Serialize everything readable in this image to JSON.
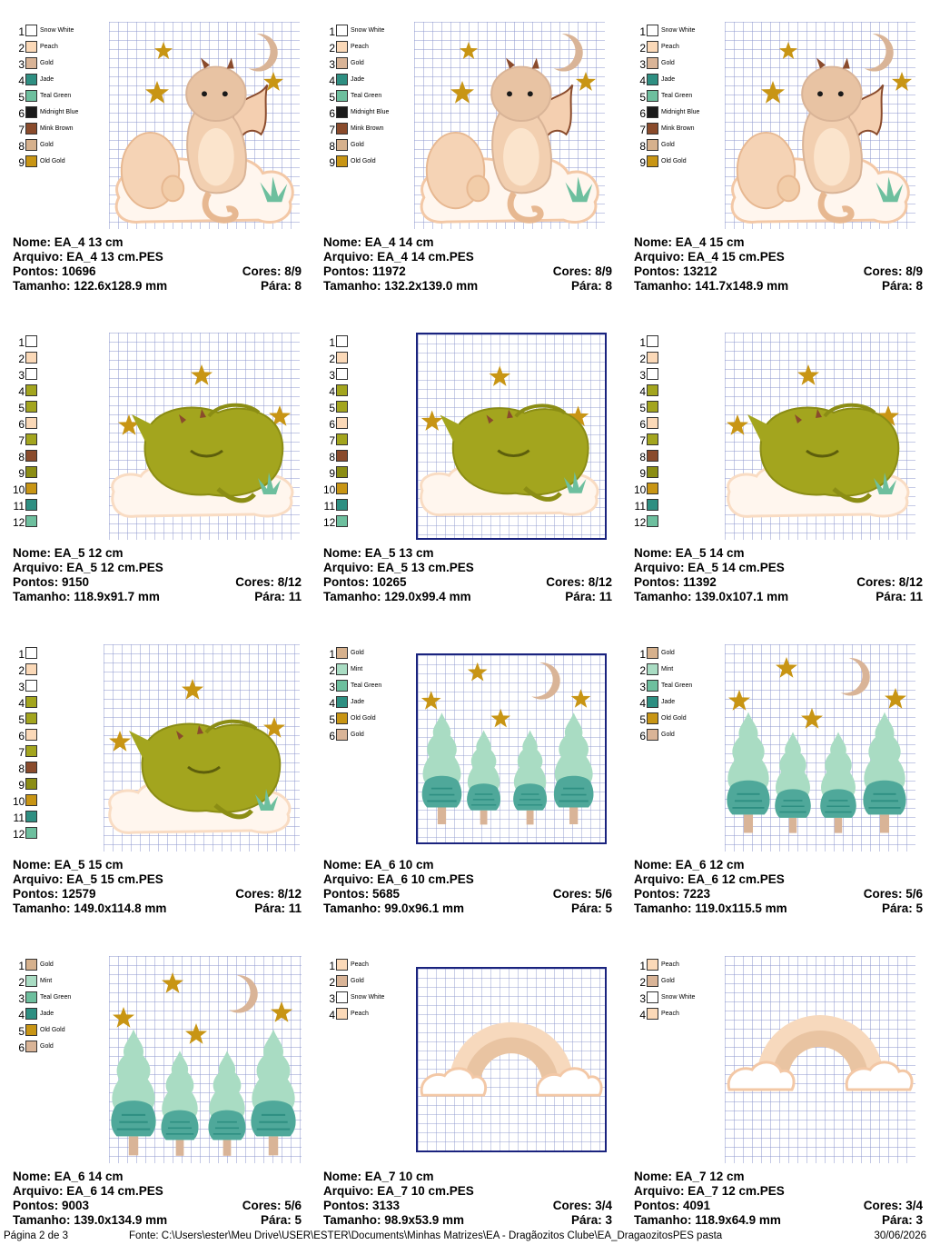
{
  "cards": [
    {
      "legend": [
        {
          "n": "1",
          "color": "#ffffff",
          "name": "Snow White"
        },
        {
          "n": "2",
          "color": "#fbd9b8",
          "name": "Peach"
        },
        {
          "n": "3",
          "color": "#d9b497",
          "name": "Gold"
        },
        {
          "n": "4",
          "color": "#2e8f82",
          "name": "Jade"
        },
        {
          "n": "5",
          "color": "#6dbf9e",
          "name": "Teal Green"
        },
        {
          "n": "6",
          "color": "#1a1a1a",
          "name": "Midnight Blue"
        },
        {
          "n": "7",
          "color": "#8a4b2c",
          "name": "Mink Brown"
        },
        {
          "n": "8",
          "color": "#d6b18d",
          "name": "Gold"
        },
        {
          "n": "9",
          "color": "#c89514",
          "name": "Old Gold"
        }
      ],
      "nome": "Nome: EA_4 13 cm",
      "arquivo": "Arquivo: EA_4 13 cm.PES",
      "pontos": "Pontos: 10696",
      "cores": "Cores: 8/9",
      "tamanho": "Tamanho: 122.6x128.9 mm",
      "para": "Pára: 8"
    },
    {
      "legend": [
        {
          "n": "1",
          "color": "#ffffff",
          "name": "Snow White"
        },
        {
          "n": "2",
          "color": "#fbd9b8",
          "name": "Peach"
        },
        {
          "n": "3",
          "color": "#d9b497",
          "name": "Gold"
        },
        {
          "n": "4",
          "color": "#2e8f82",
          "name": "Jade"
        },
        {
          "n": "5",
          "color": "#6dbf9e",
          "name": "Teal Green"
        },
        {
          "n": "6",
          "color": "#1a1a1a",
          "name": "Midnight Blue"
        },
        {
          "n": "7",
          "color": "#8a4b2c",
          "name": "Mink Brown"
        },
        {
          "n": "8",
          "color": "#d6b18d",
          "name": "Gold"
        },
        {
          "n": "9",
          "color": "#c89514",
          "name": "Old Gold"
        }
      ],
      "nome": "Nome: EA_4 14 cm",
      "arquivo": "Arquivo: EA_4 14 cm.PES",
      "pontos": "Pontos: 11972",
      "cores": "Cores: 8/9",
      "tamanho": "Tamanho: 132.2x139.0 mm",
      "para": "Pára: 8"
    },
    {
      "legend": [
        {
          "n": "1",
          "color": "#ffffff",
          "name": "Snow White"
        },
        {
          "n": "2",
          "color": "#fbd9b8",
          "name": "Peach"
        },
        {
          "n": "3",
          "color": "#d9b497",
          "name": "Gold"
        },
        {
          "n": "4",
          "color": "#2e8f82",
          "name": "Jade"
        },
        {
          "n": "5",
          "color": "#6dbf9e",
          "name": "Teal Green"
        },
        {
          "n": "6",
          "color": "#1a1a1a",
          "name": "Midnight Blue"
        },
        {
          "n": "7",
          "color": "#8a4b2c",
          "name": "Mink Brown"
        },
        {
          "n": "8",
          "color": "#d6b18d",
          "name": "Gold"
        },
        {
          "n": "9",
          "color": "#c89514",
          "name": "Old Gold"
        }
      ],
      "nome": "Nome: EA_4 15 cm",
      "arquivo": "Arquivo: EA_4 15 cm.PES",
      "pontos": "Pontos: 13212",
      "cores": "Cores: 8/9",
      "tamanho": "Tamanho: 141.7x148.9 mm",
      "para": "Pára: 8"
    },
    {
      "legend": [
        {
          "n": "1",
          "color": "#ffffff",
          "name": ""
        },
        {
          "n": "2",
          "color": "#fbd9b8",
          "name": ""
        },
        {
          "n": "3",
          "color": "#ffffff",
          "name": ""
        },
        {
          "n": "4",
          "color": "#a3a51e",
          "name": ""
        },
        {
          "n": "5",
          "color": "#a3a51e",
          "name": ""
        },
        {
          "n": "6",
          "color": "#fbd9b8",
          "name": ""
        },
        {
          "n": "7",
          "color": "#a3a51e",
          "name": ""
        },
        {
          "n": "8",
          "color": "#8a4b2c",
          "name": ""
        },
        {
          "n": "9",
          "color": "#8b8d14",
          "name": ""
        },
        {
          "n": "10",
          "color": "#c89514",
          "name": ""
        },
        {
          "n": "11",
          "color": "#2e8f82",
          "name": ""
        },
        {
          "n": "12",
          "color": "#6dbf9e",
          "name": ""
        }
      ],
      "nome": "Nome: EA_5 12 cm",
      "arquivo": "Arquivo: EA_5 12 cm.PES",
      "pontos": "Pontos: 9150",
      "cores": "Cores: 8/12",
      "tamanho": "Tamanho: 118.9x91.7 mm",
      "para": "Pára: 11"
    },
    {
      "legend": [
        {
          "n": "1",
          "color": "#ffffff",
          "name": ""
        },
        {
          "n": "2",
          "color": "#fbd9b8",
          "name": ""
        },
        {
          "n": "3",
          "color": "#ffffff",
          "name": ""
        },
        {
          "n": "4",
          "color": "#a3a51e",
          "name": ""
        },
        {
          "n": "5",
          "color": "#a3a51e",
          "name": ""
        },
        {
          "n": "6",
          "color": "#fbd9b8",
          "name": ""
        },
        {
          "n": "7",
          "color": "#a3a51e",
          "name": ""
        },
        {
          "n": "8",
          "color": "#8a4b2c",
          "name": ""
        },
        {
          "n": "9",
          "color": "#8b8d14",
          "name": ""
        },
        {
          "n": "10",
          "color": "#c89514",
          "name": ""
        },
        {
          "n": "11",
          "color": "#2e8f82",
          "name": ""
        },
        {
          "n": "12",
          "color": "#6dbf9e",
          "name": ""
        }
      ],
      "nome": "Nome: EA_5 13 cm",
      "arquivo": "Arquivo: EA_5 13 cm.PES",
      "pontos": "Pontos: 10265",
      "cores": "Cores: 8/12",
      "tamanho": "Tamanho: 129.0x99.4 mm",
      "para": "Pára: 11"
    },
    {
      "legend": [
        {
          "n": "1",
          "color": "#ffffff",
          "name": ""
        },
        {
          "n": "2",
          "color": "#fbd9b8",
          "name": ""
        },
        {
          "n": "3",
          "color": "#ffffff",
          "name": ""
        },
        {
          "n": "4",
          "color": "#a3a51e",
          "name": ""
        },
        {
          "n": "5",
          "color": "#a3a51e",
          "name": ""
        },
        {
          "n": "6",
          "color": "#fbd9b8",
          "name": ""
        },
        {
          "n": "7",
          "color": "#a3a51e",
          "name": ""
        },
        {
          "n": "8",
          "color": "#8a4b2c",
          "name": ""
        },
        {
          "n": "9",
          "color": "#8b8d14",
          "name": ""
        },
        {
          "n": "10",
          "color": "#c89514",
          "name": ""
        },
        {
          "n": "11",
          "color": "#2e8f82",
          "name": ""
        },
        {
          "n": "12",
          "color": "#6dbf9e",
          "name": ""
        }
      ],
      "nome": "Nome: EA_5 14 cm",
      "arquivo": "Arquivo: EA_5 14 cm.PES",
      "pontos": "Pontos: 11392",
      "cores": "Cores: 8/12",
      "tamanho": "Tamanho: 139.0x107.1 mm",
      "para": "Pára: 11"
    },
    {
      "legend": [
        {
          "n": "1",
          "color": "#ffffff",
          "name": ""
        },
        {
          "n": "2",
          "color": "#fbd9b8",
          "name": ""
        },
        {
          "n": "3",
          "color": "#ffffff",
          "name": ""
        },
        {
          "n": "4",
          "color": "#a3a51e",
          "name": ""
        },
        {
          "n": "5",
          "color": "#a3a51e",
          "name": ""
        },
        {
          "n": "6",
          "color": "#fbd9b8",
          "name": ""
        },
        {
          "n": "7",
          "color": "#a3a51e",
          "name": ""
        },
        {
          "n": "8",
          "color": "#8a4b2c",
          "name": ""
        },
        {
          "n": "9",
          "color": "#8b8d14",
          "name": ""
        },
        {
          "n": "10",
          "color": "#c89514",
          "name": ""
        },
        {
          "n": "11",
          "color": "#2e8f82",
          "name": ""
        },
        {
          "n": "12",
          "color": "#6dbf9e",
          "name": ""
        }
      ],
      "nome": "Nome: EA_5 15 cm",
      "arquivo": "Arquivo: EA_5 15 cm.PES",
      "pontos": "Pontos: 12579",
      "cores": "Cores: 8/12",
      "tamanho": "Tamanho: 149.0x114.8 mm",
      "para": "Pára: 11"
    },
    {
      "legend": [
        {
          "n": "1",
          "color": "#d6b18d",
          "name": "Gold"
        },
        {
          "n": "2",
          "color": "#a9dcc3",
          "name": "Mint"
        },
        {
          "n": "3",
          "color": "#6dbf9e",
          "name": "Teal Green"
        },
        {
          "n": "4",
          "color": "#2e8f82",
          "name": "Jade"
        },
        {
          "n": "5",
          "color": "#c89514",
          "name": "Old Gold"
        },
        {
          "n": "6",
          "color": "#d9b497",
          "name": "Gold"
        }
      ],
      "nome": "Nome: EA_6 10 cm",
      "arquivo": "Arquivo: EA_6 10 cm.PES",
      "pontos": "Pontos: 5685",
      "cores": "Cores: 5/6",
      "tamanho": "Tamanho: 99.0x96.1 mm",
      "para": "Pára: 5"
    },
    {
      "legend": [
        {
          "n": "1",
          "color": "#d6b18d",
          "name": "Gold"
        },
        {
          "n": "2",
          "color": "#a9dcc3",
          "name": "Mint"
        },
        {
          "n": "3",
          "color": "#6dbf9e",
          "name": "Teal Green"
        },
        {
          "n": "4",
          "color": "#2e8f82",
          "name": "Jade"
        },
        {
          "n": "5",
          "color": "#c89514",
          "name": "Old Gold"
        },
        {
          "n": "6",
          "color": "#d9b497",
          "name": "Gold"
        }
      ],
      "nome": "Nome: EA_6 12 cm",
      "arquivo": "Arquivo: EA_6 12 cm.PES",
      "pontos": "Pontos: 7223",
      "cores": "Cores: 5/6",
      "tamanho": "Tamanho: 119.0x115.5 mm",
      "para": "Pára: 5"
    },
    {
      "legend": [
        {
          "n": "1",
          "color": "#d6b18d",
          "name": "Gold"
        },
        {
          "n": "2",
          "color": "#a9dcc3",
          "name": "Mint"
        },
        {
          "n": "3",
          "color": "#6dbf9e",
          "name": "Teal Green"
        },
        {
          "n": "4",
          "color": "#2e8f82",
          "name": "Jade"
        },
        {
          "n": "5",
          "color": "#c89514",
          "name": "Old Gold"
        },
        {
          "n": "6",
          "color": "#d9b497",
          "name": "Gold"
        }
      ],
      "nome": "Nome: EA_6 14 cm",
      "arquivo": "Arquivo: EA_6 14 cm.PES",
      "pontos": "Pontos: 9003",
      "cores": "Cores: 5/6",
      "tamanho": "Tamanho: 139.0x134.9 mm",
      "para": "Pára: 5"
    },
    {
      "legend": [
        {
          "n": "1",
          "color": "#fbd9b8",
          "name": "Peach"
        },
        {
          "n": "2",
          "color": "#d9b497",
          "name": "Gold"
        },
        {
          "n": "3",
          "color": "#ffffff",
          "name": "Snow White"
        },
        {
          "n": "4",
          "color": "#fbd9b8",
          "name": "Peach"
        }
      ],
      "nome": "Nome: EA_7 10 cm",
      "arquivo": "Arquivo: EA_7 10 cm.PES",
      "pontos": "Pontos: 3133",
      "cores": "Cores: 3/4",
      "tamanho": "Tamanho: 98.9x53.9 mm",
      "para": "Pára: 3"
    },
    {
      "legend": [
        {
          "n": "1",
          "color": "#fbd9b8",
          "name": "Peach"
        },
        {
          "n": "2",
          "color": "#d9b497",
          "name": "Gold"
        },
        {
          "n": "3",
          "color": "#ffffff",
          "name": "Snow White"
        },
        {
          "n": "4",
          "color": "#fbd9b8",
          "name": "Peach"
        }
      ],
      "nome": "Nome: EA_7 12 cm",
      "arquivo": "Arquivo: EA_7 12 cm.PES",
      "pontos": "Pontos: 4091",
      "cores": "Cores: 3/4",
      "tamanho": "Tamanho: 118.9x64.9 mm",
      "para": "Pára: 3"
    }
  ],
  "footer": {
    "page": "Página 2 de 3",
    "source": "Fonte: C:\\Users\\ester\\Meu Drive\\USER\\ESTER\\Documents\\Minhas Matrizes\\EA - Dragãozitos Clube\\EA_DragaozitosPES pasta",
    "date": "30/06/2026"
  }
}
